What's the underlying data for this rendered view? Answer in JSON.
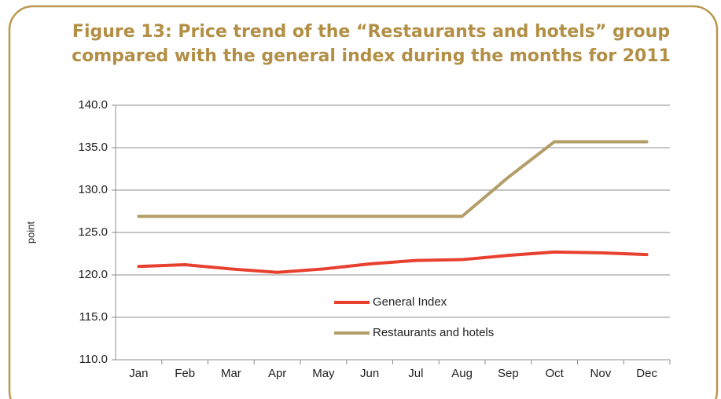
{
  "chart_data": {
    "type": "line",
    "title": [
      "Figure 13: Price trend of the “Restaurants and hotels” group",
      "compared with the general index during the months for 2011"
    ],
    "y_label": "point",
    "categories": [
      "Jan",
      "Feb",
      "Mar",
      "Apr",
      "May",
      "Jun",
      "Jul",
      "Aug",
      "Sep",
      "Oct",
      "Nov",
      "Dec"
    ],
    "series": [
      {
        "name": "General Index",
        "color": "#e8402f",
        "values": [
          121.0,
          121.2,
          120.7,
          120.3,
          120.7,
          121.3,
          121.7,
          121.8,
          122.3,
          122.7,
          122.6,
          122.4
        ]
      },
      {
        "name": "Restaurants and hotels",
        "color": "#b39d68",
        "values": [
          126.9,
          126.9,
          126.9,
          126.9,
          126.9,
          126.9,
          126.9,
          126.9,
          131.5,
          135.7,
          135.7,
          135.7
        ]
      }
    ],
    "ylim": [
      110,
      140
    ],
    "yticks": [
      {
        "value": 110,
        "label": "110.0"
      },
      {
        "value": 115,
        "label": "115.0"
      },
      {
        "value": 120,
        "label": "120.0"
      },
      {
        "value": 125,
        "label": "125.0"
      },
      {
        "value": 130,
        "label": "130.0"
      },
      {
        "value": 135,
        "label": "135.0"
      },
      {
        "value": 140,
        "label": "140.0"
      }
    ],
    "grid": true
  }
}
